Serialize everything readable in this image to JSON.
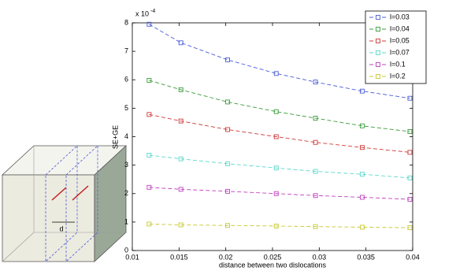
{
  "chart_data": {
    "type": "line",
    "x_label": "distance between two dislocations",
    "y_label": "SE+GE",
    "y_scale": {
      "base": "x 10",
      "exponent": "-4"
    },
    "x": [
      0.0118,
      0.0152,
      0.0202,
      0.0254,
      0.0296,
      0.0346,
      0.0397
    ],
    "series": [
      {
        "name": "l=0.03",
        "color": "#4a5cd6",
        "values": [
          7.95,
          7.3,
          6.7,
          6.22,
          5.92,
          5.6,
          5.35
        ]
      },
      {
        "name": "l=0.04",
        "color": "#3a9b3a",
        "values": [
          5.98,
          5.65,
          5.22,
          4.88,
          4.65,
          4.38,
          4.18
        ]
      },
      {
        "name": "l=0.05",
        "color": "#d03838",
        "values": [
          4.78,
          4.55,
          4.25,
          4.0,
          3.8,
          3.62,
          3.45
        ]
      },
      {
        "name": "l=0.07",
        "color": "#5ad8cc",
        "values": [
          3.35,
          3.22,
          3.05,
          2.9,
          2.78,
          2.68,
          2.55
        ]
      },
      {
        "name": "l=0.1",
        "color": "#c040c0",
        "values": [
          2.22,
          2.15,
          2.08,
          2.0,
          1.93,
          1.87,
          1.8
        ]
      },
      {
        "name": "l=0.2",
        "color": "#c8c830",
        "values": [
          0.93,
          0.9,
          0.88,
          0.86,
          0.84,
          0.82,
          0.8
        ]
      }
    ],
    "xlim": [
      0.01,
      0.04
    ],
    "xticks": [
      0.01,
      0.015,
      0.02,
      0.025,
      0.03,
      0.035,
      0.04
    ],
    "ylim": [
      0,
      8
    ],
    "yticks": [
      0,
      1,
      2,
      3,
      4,
      5,
      6,
      7,
      8
    ],
    "legend": "top-right"
  },
  "diagram": {
    "label": "d"
  }
}
